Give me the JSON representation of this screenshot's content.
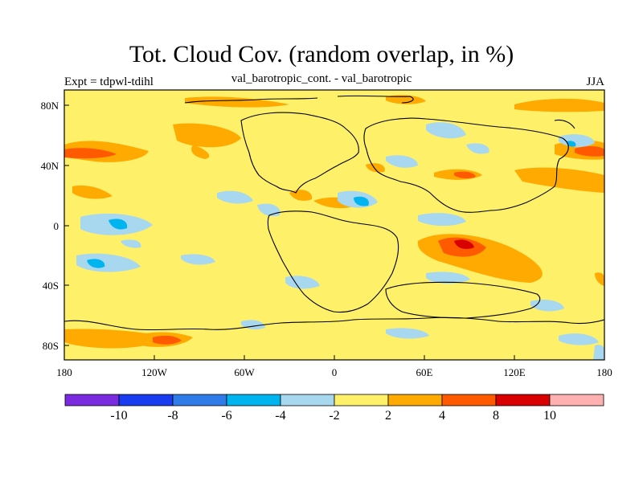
{
  "header": {
    "title": "Tot. Cloud Cov. (random overlap, in %)",
    "subtitle": "val_barotropic_cont. - val_barotropic",
    "left_label": "Expt = tdpwl-tdihl",
    "right_label": "JJA"
  },
  "axes": {
    "lon_ticks": [
      "180",
      "120W",
      "60W",
      "0",
      "60E",
      "120E",
      "180"
    ],
    "lat_ticks": [
      "80N",
      "40N",
      "0",
      "40S",
      "80S"
    ]
  },
  "colorbar": {
    "colors": [
      "#7a2be0",
      "#1a3cf0",
      "#2f7be8",
      "#00b4f0",
      "#a8d8f0",
      "#fff06a",
      "#ffaa00",
      "#ff5a00",
      "#d80000",
      "#ffb0b0"
    ],
    "labels": [
      "-10",
      "-8",
      "-6",
      "-4",
      "-2",
      "2",
      "4",
      "8",
      "10"
    ]
  }
}
